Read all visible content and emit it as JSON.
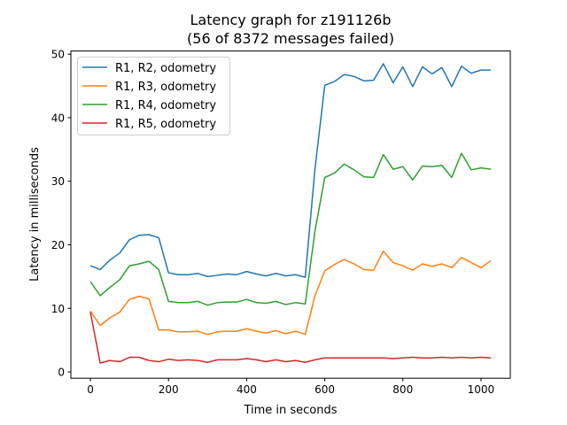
{
  "chart_data": {
    "type": "line",
    "title": "Latency graph for z191126b",
    "subtitle": "(56 of 8372 messages failed)",
    "xlabel": "Time in seconds",
    "ylabel": "Latency in milliseconds",
    "xlim": [
      -50,
      1075
    ],
    "ylim": [
      -1,
      50.5
    ],
    "xticks": [
      0,
      200,
      400,
      600,
      800,
      1000
    ],
    "yticks": [
      0,
      10,
      20,
      30,
      40,
      50
    ],
    "grid": false,
    "legend_position": "top-left",
    "x": [
      0,
      25,
      50,
      75,
      100,
      125,
      150,
      175,
      200,
      225,
      250,
      275,
      300,
      325,
      350,
      375,
      400,
      425,
      450,
      475,
      500,
      525,
      550,
      575,
      600,
      625,
      650,
      675,
      700,
      725,
      750,
      775,
      800,
      825,
      850,
      875,
      900,
      925,
      950,
      975,
      1000,
      1025
    ],
    "series": [
      {
        "name": "R1, R2, odometry",
        "color": "#1f77b4",
        "values": [
          16.7,
          16.1,
          17.6,
          18.7,
          20.8,
          21.5,
          21.6,
          21.1,
          15.6,
          15.3,
          15.3,
          15.5,
          15.0,
          15.2,
          15.4,
          15.3,
          15.8,
          15.4,
          15.1,
          15.5,
          15.1,
          15.3,
          14.9,
          32.0,
          45.1,
          45.7,
          46.8,
          46.5,
          45.8,
          45.9,
          48.5,
          45.5,
          48.0,
          44.9,
          48.0,
          46.9,
          47.9,
          44.9,
          48.1,
          47.0,
          47.5,
          47.5
        ]
      },
      {
        "name": "R1, R3, odometry",
        "color": "#ff7f0e",
        "values": [
          9.6,
          7.3,
          8.5,
          9.4,
          11.4,
          11.9,
          11.5,
          6.6,
          6.6,
          6.3,
          6.3,
          6.4,
          5.9,
          6.3,
          6.4,
          6.4,
          6.8,
          6.4,
          6.1,
          6.5,
          6.0,
          6.4,
          5.9,
          12.0,
          15.9,
          16.9,
          17.7,
          17.0,
          16.1,
          16.0,
          19.0,
          17.2,
          16.7,
          16.0,
          17.0,
          16.6,
          17.0,
          16.4,
          18.0,
          17.2,
          16.4,
          17.5
        ]
      },
      {
        "name": "R1, R4, odometry",
        "color": "#2ca02c",
        "values": [
          14.2,
          12.0,
          13.3,
          14.5,
          16.7,
          17.0,
          17.4,
          16.1,
          11.1,
          10.9,
          10.9,
          11.1,
          10.5,
          10.9,
          11.0,
          11.0,
          11.4,
          10.9,
          10.8,
          11.1,
          10.6,
          10.9,
          10.7,
          22.2,
          30.6,
          31.3,
          32.7,
          31.8,
          30.7,
          30.6,
          34.2,
          31.9,
          32.3,
          30.2,
          32.4,
          32.3,
          32.5,
          30.6,
          34.4,
          31.8,
          32.1,
          31.9
        ]
      },
      {
        "name": "R1, R5, odometry",
        "color": "#d62728",
        "values": [
          9.4,
          1.4,
          1.8,
          1.6,
          2.3,
          2.3,
          1.8,
          1.6,
          2.0,
          1.8,
          1.9,
          1.8,
          1.5,
          1.9,
          1.9,
          1.9,
          2.1,
          1.9,
          1.6,
          1.9,
          1.6,
          1.8,
          1.5,
          1.9,
          2.2,
          2.2,
          2.2,
          2.2,
          2.2,
          2.2,
          2.2,
          2.1,
          2.2,
          2.3,
          2.2,
          2.2,
          2.3,
          2.2,
          2.3,
          2.2,
          2.3,
          2.2
        ]
      }
    ]
  }
}
